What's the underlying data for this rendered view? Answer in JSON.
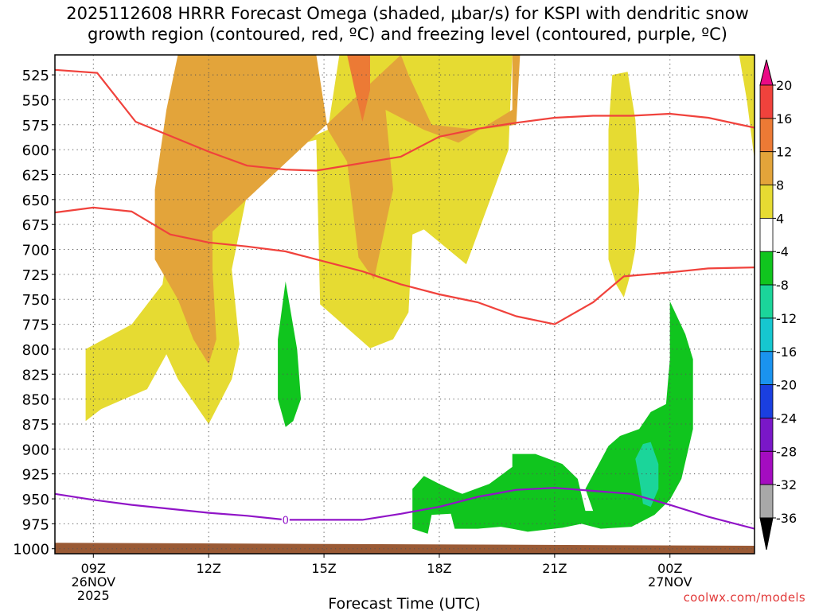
{
  "title": {
    "line1": "2025112608 HRRR Forecast Omega (shaded, μbar/s) for KSPI with dendritic snow",
    "line2": "growth region (contoured, red, ºC) and freezing level (contoured, purple, ºC)"
  },
  "credit": "coolwx.com/models",
  "chart_data": {
    "type": "time-height contour",
    "xlabel": "Forecast Time (UTC)",
    "ylabel": "Pressure (hPa)",
    "x_range_hours": [
      8,
      26.2
    ],
    "y_range_hpa": [
      1005,
      505
    ],
    "x_ticks": [
      {
        "hour": 9,
        "label": "09Z",
        "sub1": "26NOV",
        "sub2": "2025"
      },
      {
        "hour": 12,
        "label": "12Z",
        "sub1": "",
        "sub2": ""
      },
      {
        "hour": 15,
        "label": "15Z",
        "sub1": "",
        "sub2": ""
      },
      {
        "hour": 18,
        "label": "18Z",
        "sub1": "",
        "sub2": ""
      },
      {
        "hour": 21,
        "label": "21Z",
        "sub1": "",
        "sub2": ""
      },
      {
        "hour": 24,
        "label": "00Z",
        "sub1": "27NOV",
        "sub2": ""
      }
    ],
    "y_ticks": [
      "525",
      "550",
      "575",
      "600",
      "625",
      "650",
      "675",
      "700",
      "725",
      "750",
      "775",
      "800",
      "825",
      "850",
      "875",
      "900",
      "925",
      "950",
      "975",
      "1000"
    ],
    "colorbar": {
      "levels": [
        "20",
        "16",
        "12",
        "8",
        "4",
        "-4",
        "-8",
        "-12",
        "-16",
        "-20",
        "-24",
        "-28",
        "-32",
        "-36"
      ],
      "colors": [
        "#ea0a85",
        "#f0423c",
        "#ec7a35",
        "#e3a43a",
        "#e6db32",
        "#ffffff",
        "#10c51e",
        "#1bd59a",
        "#16c7cf",
        "#1a93ef",
        "#1a3fe0",
        "#7a17c8",
        "#a40cc0",
        "#a8a8a8",
        "#000000"
      ]
    },
    "series": [
      {
        "name": "Dendritic -12C upper",
        "color": "#f0423c",
        "points": [
          [
            8,
            520
          ],
          [
            9.1,
            523
          ],
          [
            10.1,
            572
          ],
          [
            12,
            602
          ],
          [
            13,
            616
          ],
          [
            14,
            620
          ],
          [
            14.8,
            621
          ],
          [
            17,
            607
          ],
          [
            18,
            587
          ],
          [
            19,
            579
          ],
          [
            20,
            573
          ],
          [
            21,
            568
          ],
          [
            22,
            566
          ],
          [
            23,
            566
          ],
          [
            24,
            564
          ],
          [
            25,
            568
          ],
          [
            26.2,
            578
          ]
        ]
      },
      {
        "name": "Dendritic -12C lower",
        "color": "#f0423c",
        "points": [
          [
            8,
            663
          ],
          [
            9,
            658
          ],
          [
            10,
            662
          ],
          [
            11,
            685
          ],
          [
            12,
            693
          ],
          [
            13,
            697
          ],
          [
            14,
            702
          ],
          [
            15,
            712
          ],
          [
            16,
            722
          ],
          [
            17,
            735
          ],
          [
            18,
            745
          ],
          [
            19,
            753
          ],
          [
            20,
            767
          ],
          [
            21,
            775
          ],
          [
            22,
            753
          ],
          [
            22.8,
            727
          ],
          [
            24,
            723
          ],
          [
            25,
            719
          ],
          [
            26.2,
            718
          ]
        ]
      },
      {
        "name": "Freezing level 0C",
        "color": "#9014c7",
        "points": [
          [
            8,
            945
          ],
          [
            9,
            951
          ],
          [
            10,
            956
          ],
          [
            11,
            960
          ],
          [
            12,
            964
          ],
          [
            13,
            967
          ],
          [
            14,
            971
          ],
          [
            15,
            971
          ],
          [
            16,
            971
          ],
          [
            17,
            965
          ],
          [
            18,
            958
          ],
          [
            19,
            948
          ],
          [
            20,
            941
          ],
          [
            21,
            939
          ],
          [
            22,
            942
          ],
          [
            23,
            945
          ],
          [
            24,
            956
          ],
          [
            25,
            968
          ],
          [
            26.2,
            980
          ]
        ]
      }
    ],
    "contour_label": "0",
    "ground": {
      "name": "terrain",
      "color": "#9a5a35",
      "top_hpa": 996
    },
    "shading": [
      {
        "name": "omega +4 region A",
        "level": 4,
        "color": "#e6db32",
        "points": [
          [
            8.8,
            872
          ],
          [
            8.8,
            800
          ],
          [
            10,
            775
          ],
          [
            10.8,
            735
          ],
          [
            11.3,
            600
          ],
          [
            11.6,
            505
          ],
          [
            14,
            505
          ],
          [
            14.2,
            595
          ],
          [
            15.1,
            580
          ],
          [
            15.4,
            505
          ],
          [
            17.8,
            505
          ],
          [
            19.9,
            505
          ],
          [
            19.8,
            600
          ],
          [
            18.8,
            705
          ],
          [
            18.7,
            715
          ],
          [
            17.6,
            680
          ],
          [
            17.3,
            685
          ],
          [
            17.2,
            763
          ],
          [
            16.8,
            790
          ],
          [
            16.2,
            799
          ],
          [
            14.9,
            755
          ],
          [
            14.8,
            590
          ],
          [
            13.2,
            606
          ],
          [
            12.6,
            720
          ],
          [
            12.8,
            795
          ],
          [
            12.6,
            830
          ],
          [
            12,
            875
          ],
          [
            11.2,
            830
          ],
          [
            10.9,
            805
          ],
          [
            10.4,
            840
          ],
          [
            9.8,
            850
          ],
          [
            9.2,
            860
          ]
        ]
      },
      {
        "name": "omega +8 region A",
        "level": 8,
        "color": "#e3a43a",
        "points": [
          [
            11.6,
            700
          ],
          [
            11.8,
            505
          ],
          [
            14.8,
            505
          ],
          [
            15.1,
            580
          ],
          [
            15.6,
            612
          ],
          [
            15.9,
            708
          ],
          [
            16.3,
            730
          ],
          [
            16.8,
            640
          ],
          [
            16.6,
            560
          ],
          [
            17.6,
            580
          ],
          [
            18.5,
            593
          ],
          [
            19.9,
            560
          ],
          [
            19.9,
            505
          ],
          [
            20.1,
            505
          ],
          [
            20,
            575
          ],
          [
            19,
            580
          ],
          [
            17.8,
            575
          ],
          [
            17.2,
            525
          ],
          [
            17,
            505
          ]
        ]
      },
      {
        "name": "omega +8 region B",
        "level": 8,
        "color": "#e3a43a",
        "points": [
          [
            10.6,
            710
          ],
          [
            10.6,
            640
          ],
          [
            10.9,
            560
          ],
          [
            11.2,
            505
          ],
          [
            12.6,
            505
          ],
          [
            12.5,
            560
          ],
          [
            12.1,
            640
          ],
          [
            12.1,
            720
          ],
          [
            12.2,
            790
          ],
          [
            12,
            815
          ],
          [
            11.6,
            790
          ],
          [
            11.2,
            750
          ]
        ]
      },
      {
        "name": "omega +12 region",
        "level": 12,
        "color": "#ec7a35",
        "points": [
          [
            15.6,
            505
          ],
          [
            16.2,
            505
          ],
          [
            16.2,
            540
          ],
          [
            16,
            572
          ],
          [
            15.8,
            540
          ]
        ]
      },
      {
        "name": "omega +4 region B",
        "level": 4,
        "color": "#e6db32",
        "points": [
          [
            22.5,
            525
          ],
          [
            22.9,
            522
          ],
          [
            23.1,
            570
          ],
          [
            23.2,
            640
          ],
          [
            23.1,
            700
          ],
          [
            23,
            720
          ],
          [
            22.9,
            735
          ],
          [
            22.8,
            748
          ],
          [
            22.6,
            735
          ],
          [
            22.4,
            710
          ],
          [
            22.4,
            650
          ],
          [
            22.4,
            580
          ]
        ]
      },
      {
        "name": "omega +4 region C",
        "level": 4,
        "color": "#e6db32",
        "points": [
          [
            25.8,
            505
          ],
          [
            26.2,
            505
          ],
          [
            26.2,
            610
          ],
          [
            26,
            550
          ]
        ]
      },
      {
        "name": "omega -4 region A",
        "level": -4,
        "color": "#10c51e",
        "points": [
          [
            13.8,
            850
          ],
          [
            13.8,
            790
          ],
          [
            14,
            732
          ],
          [
            14.3,
            800
          ],
          [
            14.4,
            850
          ],
          [
            14.2,
            872
          ],
          [
            14,
            878
          ]
        ]
      },
      {
        "name": "omega -4 region B",
        "level": -4,
        "color": "#10c51e",
        "points": [
          [
            17.3,
            980
          ],
          [
            17.3,
            940
          ],
          [
            17.6,
            927
          ],
          [
            18,
            935
          ],
          [
            18.4,
            942
          ],
          [
            18.6,
            945
          ],
          [
            19.3,
            935
          ],
          [
            19.9,
            918
          ],
          [
            19.9,
            905
          ],
          [
            20.5,
            905
          ],
          [
            21.2,
            915
          ],
          [
            21.6,
            930
          ],
          [
            21.8,
            962
          ],
          [
            22,
            962
          ],
          [
            21.8,
            940
          ],
          [
            22.4,
            897
          ],
          [
            22.7,
            887
          ],
          [
            23.2,
            880
          ],
          [
            23.5,
            863
          ],
          [
            23.9,
            855
          ],
          [
            24,
            810
          ],
          [
            24,
            752
          ],
          [
            24.4,
            785
          ],
          [
            24.6,
            810
          ],
          [
            24.6,
            880
          ],
          [
            24.3,
            930
          ],
          [
            24,
            951
          ],
          [
            23.6,
            966
          ],
          [
            23,
            978
          ],
          [
            22.2,
            980
          ],
          [
            21.7,
            975
          ],
          [
            21.2,
            979
          ],
          [
            20.3,
            983
          ],
          [
            19.9,
            980
          ],
          [
            19.6,
            978
          ],
          [
            19,
            980
          ],
          [
            18.4,
            980
          ],
          [
            18.3,
            965
          ],
          [
            17.8,
            966
          ],
          [
            17.7,
            985
          ]
        ]
      },
      {
        "name": "omega -8 core",
        "level": -8,
        "color": "#1bd59a",
        "points": [
          [
            23.2,
            930
          ],
          [
            23.1,
            910
          ],
          [
            23.3,
            895
          ],
          [
            23.5,
            893
          ],
          [
            23.7,
            915
          ],
          [
            23.7,
            940
          ],
          [
            23.5,
            958
          ],
          [
            23.3,
            955
          ]
        ]
      }
    ]
  }
}
